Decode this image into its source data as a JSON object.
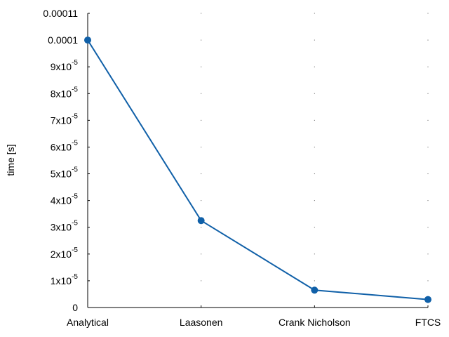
{
  "chart_data": {
    "type": "line",
    "title": "",
    "xlabel": "",
    "ylabel": "time [s]",
    "categories": [
      "Analytical",
      "Laasonen",
      "Crank Nicholson",
      "FTCS"
    ],
    "series": [
      {
        "values": [
          0.0001,
          3.25e-05,
          6.5e-06,
          3e-06
        ],
        "color": "#1060a8"
      }
    ],
    "ylim": [
      0,
      0.00011
    ],
    "yticks": [
      {
        "value": 0,
        "label": "0"
      },
      {
        "value": 1e-05,
        "label": "1x10",
        "exp": "-5"
      },
      {
        "value": 2e-05,
        "label": "2x10",
        "exp": "-5"
      },
      {
        "value": 3e-05,
        "label": "3x10",
        "exp": "-5"
      },
      {
        "value": 4e-05,
        "label": "4x10",
        "exp": "-5"
      },
      {
        "value": 5e-05,
        "label": "5x10",
        "exp": "-5"
      },
      {
        "value": 6e-05,
        "label": "6x10",
        "exp": "-5"
      },
      {
        "value": 7e-05,
        "label": "7x10",
        "exp": "-5"
      },
      {
        "value": 8e-05,
        "label": "8x10",
        "exp": "-5"
      },
      {
        "value": 9e-05,
        "label": "9x10",
        "exp": "-5"
      },
      {
        "value": 0.0001,
        "label": "0.0001"
      },
      {
        "value": 0.00011,
        "label": "0.00011"
      }
    ],
    "grid": "dotted",
    "legend": "none"
  }
}
